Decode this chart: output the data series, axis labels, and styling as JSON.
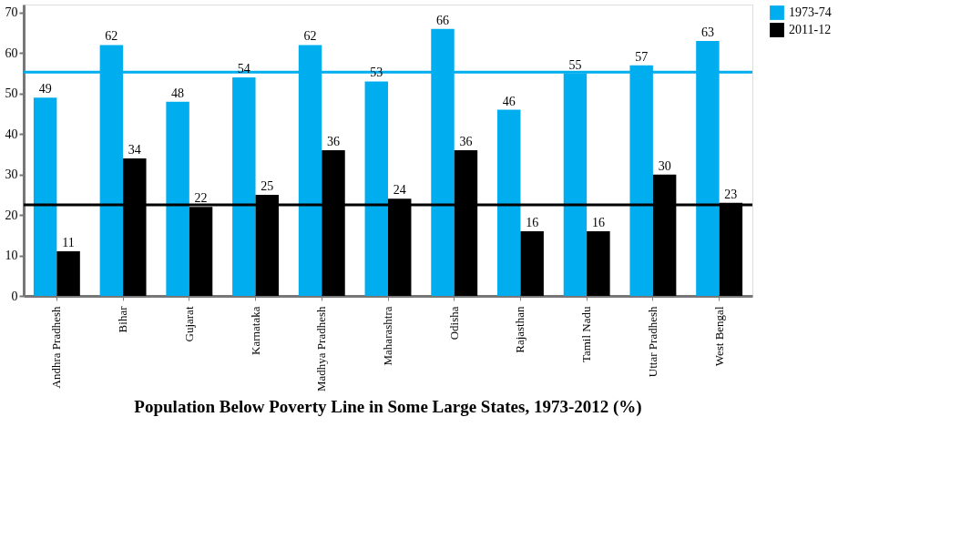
{
  "chart_data": {
    "type": "bar",
    "title": "Population Below Poverty Line in Some Large States, 1973-2012 (%)",
    "categories": [
      "Andhra Pradhesh",
      "Bihar",
      "Gujarat",
      "Karnataka",
      "Madhya Pradhesh",
      "Maharashtra",
      "Odisha",
      "Rajasthan",
      "Tamil Nadu",
      "Uttar Pradhesh",
      "West Bengal"
    ],
    "series": [
      {
        "name": "1973-74",
        "color": "#00aeef",
        "values": [
          49,
          62,
          48,
          54,
          62,
          53,
          66,
          46,
          55,
          57,
          63
        ]
      },
      {
        "name": "2011-12",
        "color": "#000000",
        "values": [
          11,
          34,
          22,
          25,
          36,
          24,
          36,
          16,
          16,
          30,
          23
        ]
      }
    ],
    "ylim": [
      0,
      72
    ],
    "yticks": [
      0,
      10,
      20,
      30,
      40,
      50,
      60,
      70
    ],
    "ref_lines": [
      {
        "axis": "y",
        "value": 55.3,
        "color": "#00aeef"
      },
      {
        "axis": "y",
        "value": 22.5,
        "color": "#000000"
      }
    ],
    "data_labels": true,
    "grid": false,
    "legend": "right"
  }
}
